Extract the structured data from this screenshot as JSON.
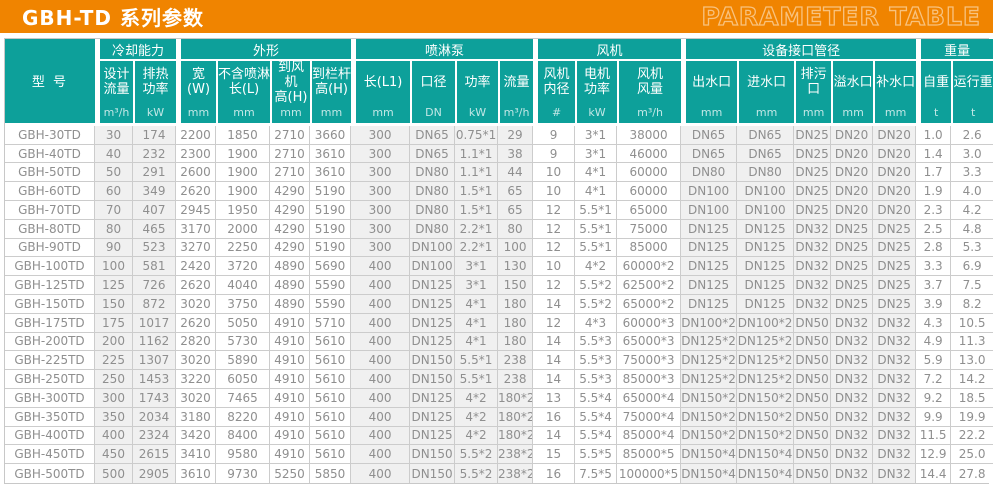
{
  "banner": {
    "title": "GBH-TD 系列参数",
    "subtitle": "PARAMETER TABLE"
  },
  "colors": {
    "banner_bg": "#f08400",
    "table_header_bg": "#0da09a",
    "shaded_column_bg": "#f0f0f0",
    "grid_border": "#cccccc",
    "body_text": "#8f8f8f"
  },
  "table": {
    "model_header": "型 号",
    "groups": [
      {
        "label": "冷却能力",
        "shaded": true,
        "cols": [
          {
            "name": "设计\n流量",
            "unit": "m³/h"
          },
          {
            "name": "排热\n功率",
            "unit": "kW"
          }
        ]
      },
      {
        "label": "外形",
        "shaded": false,
        "cols": [
          {
            "name": "宽(W)",
            "unit": "mm"
          },
          {
            "name": "不含喷淋\n长(L)",
            "unit": "mm"
          },
          {
            "name": "到风机\n高(H)",
            "unit": "mm"
          },
          {
            "name": "到栏杆\n高(H)",
            "unit": "mm"
          }
        ]
      },
      {
        "label": "喷淋泵",
        "shaded": true,
        "cols": [
          {
            "name": "长(L1)",
            "unit": "mm"
          },
          {
            "name": "口径",
            "unit": "DN"
          },
          {
            "name": "功率",
            "unit": "kW"
          },
          {
            "name": "流量",
            "unit": "m³/h"
          }
        ]
      },
      {
        "label": "风机",
        "shaded": false,
        "cols": [
          {
            "name": "风机\n内径",
            "unit": "#"
          },
          {
            "name": "电机\n功率",
            "unit": "kW"
          },
          {
            "name": "风机\n风量",
            "unit": "m³/h"
          }
        ]
      },
      {
        "label": "设备接口管径",
        "shaded": true,
        "cols": [
          {
            "name": "出水口",
            "unit": "mm"
          },
          {
            "name": "进水口",
            "unit": "mm"
          },
          {
            "name": "排污口",
            "unit": "mm"
          },
          {
            "name": "溢水口",
            "unit": "mm"
          },
          {
            "name": "补水口",
            "unit": "mm"
          }
        ]
      },
      {
        "label": "重量",
        "shaded": false,
        "cols": [
          {
            "name": "自重",
            "unit": "t"
          },
          {
            "name": "运行重",
            "unit": "t"
          }
        ]
      }
    ],
    "rows": [
      [
        "GBH-30TD",
        "30",
        "174",
        "2200",
        "1850",
        "2710",
        "3660",
        "300",
        "DN65",
        "0.75*1",
        "29",
        "9",
        "3*1",
        "38000",
        "DN65",
        "DN65",
        "DN25",
        "DN20",
        "DN20",
        "1.0",
        "2.6"
      ],
      [
        "GBH-40TD",
        "40",
        "232",
        "2300",
        "1900",
        "2710",
        "3610",
        "300",
        "DN65",
        "1.1*1",
        "38",
        "9",
        "3*1",
        "46000",
        "DN65",
        "DN65",
        "DN25",
        "DN20",
        "DN20",
        "1.4",
        "3.0"
      ],
      [
        "GBH-50TD",
        "50",
        "291",
        "2600",
        "1900",
        "2710",
        "3610",
        "300",
        "DN80",
        "1.1*1",
        "44",
        "10",
        "4*1",
        "60000",
        "DN80",
        "DN80",
        "DN25",
        "DN20",
        "DN20",
        "1.7",
        "3.3"
      ],
      [
        "GBH-60TD",
        "60",
        "349",
        "2620",
        "1900",
        "4290",
        "5190",
        "300",
        "DN80",
        "1.5*1",
        "65",
        "10",
        "4*1",
        "60000",
        "DN100",
        "DN100",
        "DN25",
        "DN20",
        "DN20",
        "1.9",
        "4.0"
      ],
      [
        "GBH-70TD",
        "70",
        "407",
        "2945",
        "1950",
        "4290",
        "5190",
        "300",
        "DN80",
        "1.5*1",
        "65",
        "12",
        "5.5*1",
        "65000",
        "DN100",
        "DN100",
        "DN25",
        "DN20",
        "DN20",
        "2.3",
        "4.2"
      ],
      [
        "GBH-80TD",
        "80",
        "465",
        "3170",
        "2000",
        "4290",
        "5190",
        "300",
        "DN80",
        "2.2*1",
        "80",
        "12",
        "5.5*1",
        "75000",
        "DN125",
        "DN125",
        "DN32",
        "DN25",
        "DN25",
        "2.5",
        "4.8"
      ],
      [
        "GBH-90TD",
        "90",
        "523",
        "3270",
        "2250",
        "4290",
        "5190",
        "300",
        "DN100",
        "2.2*1",
        "100",
        "12",
        "5.5*1",
        "85000",
        "DN125",
        "DN125",
        "DN32",
        "DN25",
        "DN25",
        "2.8",
        "5.3"
      ],
      [
        "GBH-100TD",
        "100",
        "581",
        "2420",
        "3720",
        "4890",
        "5690",
        "400",
        "DN100",
        "3*1",
        "130",
        "10",
        "4*2",
        "60000*2",
        "DN125",
        "DN125",
        "DN32",
        "DN25",
        "DN25",
        "3.3",
        "6.9"
      ],
      [
        "GBH-125TD",
        "125",
        "726",
        "2620",
        "4040",
        "4890",
        "5590",
        "400",
        "DN125",
        "3*1",
        "150",
        "12",
        "5.5*2",
        "62500*2",
        "DN125",
        "DN125",
        "DN32",
        "DN25",
        "DN25",
        "3.7",
        "7.5"
      ],
      [
        "GBH-150TD",
        "150",
        "872",
        "3020",
        "3750",
        "4890",
        "5590",
        "400",
        "DN125",
        "4*1",
        "180",
        "14",
        "5.5*2",
        "65000*2",
        "DN125",
        "DN125",
        "DN32",
        "DN25",
        "DN25",
        "3.9",
        "8.2"
      ],
      [
        "GBH-175TD",
        "175",
        "1017",
        "2620",
        "5050",
        "4910",
        "5710",
        "400",
        "DN125",
        "4*1",
        "180",
        "12",
        "4*3",
        "60000*3",
        "DN100*2",
        "DN100*2",
        "DN50",
        "DN32",
        "DN32",
        "4.3",
        "10.5"
      ],
      [
        "GBH-200TD",
        "200",
        "1162",
        "2820",
        "5730",
        "4910",
        "5610",
        "400",
        "DN125",
        "4*1",
        "180",
        "14",
        "5.5*3",
        "65000*3",
        "DN125*2",
        "DN125*2",
        "DN50",
        "DN32",
        "DN32",
        "4.9",
        "11.3"
      ],
      [
        "GBH-225TD",
        "225",
        "1307",
        "3020",
        "5890",
        "4910",
        "5610",
        "400",
        "DN150",
        "5.5*1",
        "238",
        "14",
        "5.5*3",
        "75000*3",
        "DN125*2",
        "DN125*2",
        "DN50",
        "DN32",
        "DN32",
        "5.9",
        "13.0"
      ],
      [
        "GBH-250TD",
        "250",
        "1453",
        "3220",
        "6050",
        "4910",
        "5610",
        "400",
        "DN150",
        "5.5*1",
        "238",
        "14",
        "5.5*3",
        "85000*3",
        "DN125*2",
        "DN125*2",
        "DN50",
        "DN32",
        "DN32",
        "7.2",
        "14.2"
      ],
      [
        "GBH-300TD",
        "300",
        "1743",
        "3020",
        "7465",
        "4910",
        "5610",
        "400",
        "DN125",
        "4*2",
        "180*2",
        "13",
        "5.5*4",
        "65000*4",
        "DN150*2",
        "DN150*2",
        "DN50",
        "DN32",
        "DN32",
        "9.2",
        "18.5"
      ],
      [
        "GBH-350TD",
        "350",
        "2034",
        "3180",
        "8220",
        "4910",
        "5610",
        "400",
        "DN125",
        "4*2",
        "180*2",
        "16",
        "5.5*4",
        "75000*4",
        "DN150*2",
        "DN150*2",
        "DN50",
        "DN32",
        "DN32",
        "9.9",
        "19.9"
      ],
      [
        "GBH-400TD",
        "400",
        "2324",
        "3420",
        "8400",
        "4910",
        "5610",
        "400",
        "DN125",
        "4*2",
        "180*2",
        "14",
        "5.5*4",
        "85000*4",
        "DN150*2",
        "DN150*2",
        "DN50",
        "DN32",
        "DN32",
        "11.5",
        "22.2"
      ],
      [
        "GBH-450TD",
        "450",
        "2615",
        "3410",
        "9580",
        "4910",
        "5610",
        "400",
        "DN150",
        "5.5*2",
        "238*2",
        "15",
        "5.5*5",
        "85000*5",
        "DN150*4",
        "DN150*4",
        "DN50",
        "DN32",
        "DN32",
        "12.9",
        "25.0"
      ],
      [
        "GBH-500TD",
        "500",
        "2905",
        "3610",
        "9730",
        "5250",
        "5850",
        "400",
        "DN150",
        "5.5*2",
        "238*2",
        "16",
        "7.5*5",
        "100000*5",
        "DN150*4",
        "DN150*4",
        "DN50",
        "DN32",
        "DN32",
        "14.4",
        "27.8"
      ]
    ]
  }
}
